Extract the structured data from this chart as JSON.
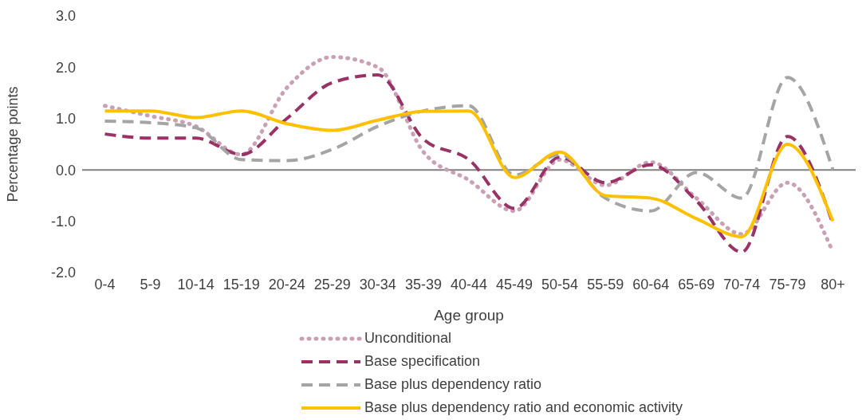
{
  "chart_data": {
    "type": "line",
    "xlabel": "Age group",
    "ylabel": "Percentage points",
    "categories": [
      "0-4",
      "5-9",
      "10-14",
      "15-19",
      "20-24",
      "25-29",
      "30-34",
      "35-39",
      "40-44",
      "45-49",
      "50-54",
      "55-59",
      "60-64",
      "65-69",
      "70-74",
      "75-79",
      "80+"
    ],
    "series": [
      {
        "name": "Unconditional",
        "color": "#c9a0b4",
        "line_style": "dotted",
        "values": [
          1.25,
          1.05,
          0.85,
          0.3,
          1.6,
          2.2,
          2.0,
          0.35,
          -0.2,
          -0.8,
          0.2,
          -0.3,
          0.15,
          -0.55,
          -1.25,
          -0.25,
          -1.6
        ]
      },
      {
        "name": "Base specification",
        "color": "#993366",
        "line_style": "dashed",
        "values": [
          0.7,
          0.62,
          0.62,
          0.3,
          1.0,
          1.7,
          1.85,
          0.6,
          0.2,
          -0.75,
          0.25,
          -0.25,
          0.1,
          -0.6,
          -1.6,
          0.65,
          -1.05
        ]
      },
      {
        "name": "Base plus dependency ratio",
        "color": "#a5a5a5",
        "line_style": "dashed",
        "values": [
          0.95,
          0.92,
          0.82,
          0.2,
          0.18,
          0.4,
          0.85,
          1.15,
          1.25,
          -0.1,
          0.3,
          -0.55,
          -0.8,
          -0.05,
          -0.55,
          1.8,
          0.0
        ]
      },
      {
        "name": "Base plus dependency ratio and economic activity",
        "color": "#ffc000",
        "line_style": "solid",
        "values": [
          1.15,
          1.15,
          1.02,
          1.15,
          0.9,
          0.77,
          0.97,
          1.14,
          1.15,
          -0.15,
          0.35,
          -0.5,
          -0.55,
          -0.95,
          -1.3,
          0.5,
          -1.0
        ]
      }
    ],
    "ylim": [
      -2,
      3
    ],
    "yticks": [
      {
        "value": -2,
        "label": "-2.0"
      },
      {
        "value": -1,
        "label": "-1.0"
      },
      {
        "value": 0,
        "label": "0.0"
      },
      {
        "value": 1,
        "label": "1.0"
      },
      {
        "value": 2,
        "label": "2.0"
      },
      {
        "value": 3,
        "label": "3.0"
      }
    ],
    "ref_lines": [
      {
        "axis": "y",
        "value": 0,
        "color": "#808080"
      }
    ],
    "grid": false,
    "legend": "bottom",
    "marker": "none"
  }
}
